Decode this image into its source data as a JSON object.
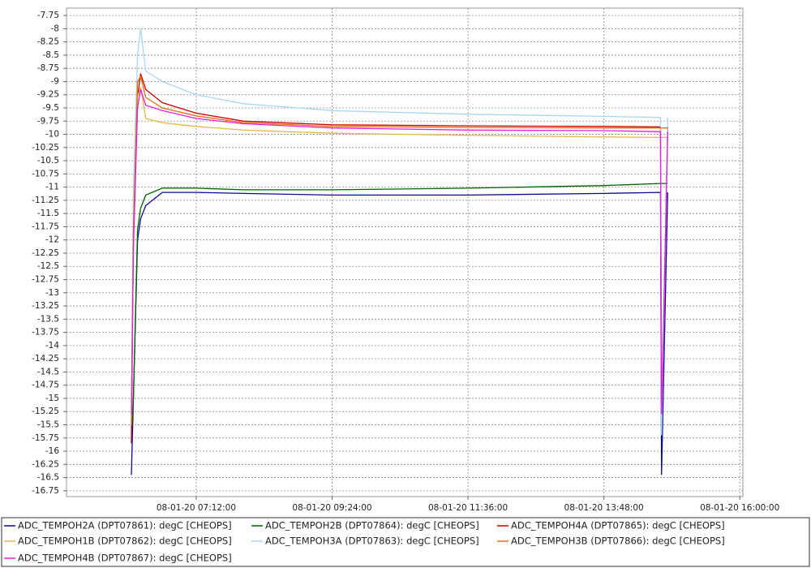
{
  "chart_data": {
    "type": "line",
    "x": [
      "08-01-20 06:09:00",
      "08-01-20 06:11:00",
      "08-01-20 06:15:00",
      "08-01-20 06:18:00",
      "08-01-20 06:23:00",
      "08-01-20 06:39:00",
      "08-01-20 07:12:00",
      "08-01-20 07:58:00",
      "08-01-20 09:24:00",
      "08-01-20 11:36:00",
      "08-01-20 13:48:00",
      "08-01-20 14:43:00",
      "08-01-20 14:44:00",
      "08-01-20 14:50:00"
    ],
    "series": [
      {
        "name": "ADC_TEMPOH2A (DPT07861): degC [CHEOPS]",
        "color": "#0a0a96",
        "values": [
          -16.45,
          -15.0,
          -12.0,
          -11.6,
          -11.35,
          -11.1,
          -11.1,
          -11.12,
          -11.15,
          -11.15,
          -11.12,
          -11.1,
          -16.45,
          -11.1
        ]
      },
      {
        "name": "ADC_TEMPOH2B (DPT07864): degC [CHEOPS]",
        "color": "#006400",
        "values": [
          -15.7,
          -15.0,
          -11.8,
          -11.4,
          -11.15,
          -11.02,
          -11.02,
          -11.05,
          -11.05,
          -11.02,
          -10.97,
          -10.93,
          -10.93,
          -10.93
        ]
      },
      {
        "name": "ADC_TEMPOH4A (DPT07865): degC [CHEOPS]",
        "color": "#cc0000",
        "values": [
          -15.85,
          -12.0,
          -9.3,
          -8.85,
          -9.15,
          -9.4,
          -9.6,
          -9.75,
          -9.82,
          -9.84,
          -9.85,
          -9.86,
          -15.6,
          -9.86
        ]
      },
      {
        "name": "ADC_TEMPOH1B (DPT07862): degC [CHEOPS]",
        "color": "#e6b84a",
        "values": [
          -15.2,
          -12.0,
          -9.3,
          -9.1,
          -9.7,
          -9.78,
          -9.85,
          -9.92,
          -9.98,
          -10.02,
          -10.05,
          -10.06,
          -10.06,
          -10.06
        ]
      },
      {
        "name": "ADC_TEMPOH3A (DPT07863): degC [CHEOPS]",
        "color": "#a8d8f0",
        "values": [
          -15.4,
          -11.0,
          -8.5,
          -8.0,
          -8.8,
          -9.0,
          -9.25,
          -9.42,
          -9.55,
          -9.62,
          -9.66,
          -9.68,
          -15.7,
          -9.68
        ]
      },
      {
        "name": "ADC_TEMPOH3B (DPT07866): degC [CHEOPS]",
        "color": "#e07010",
        "values": [
          -15.5,
          -11.8,
          -9.0,
          -8.9,
          -9.3,
          -9.5,
          -9.65,
          -9.78,
          -9.85,
          -9.87,
          -9.88,
          -9.88,
          -9.88,
          -9.88
        ]
      },
      {
        "name": "ADC_TEMPOH4B (DPT07867): degC [CHEOPS]",
        "color": "#e020e0",
        "values": [
          -15.3,
          -12.2,
          -9.5,
          -9.15,
          -9.45,
          -9.55,
          -9.7,
          -9.8,
          -9.88,
          -9.92,
          -9.93,
          -9.95,
          -15.3,
          -9.95
        ]
      }
    ],
    "xlim": [
      "08-01-20 05:06:00",
      "08-01-20 16:03:00"
    ],
    "xticks": [
      "08-01-20 07:12:00",
      "08-01-20 09:24:00",
      "08-01-20 11:36:00",
      "08-01-20 13:48:00",
      "08-01-20 16:00:00"
    ],
    "ylim": [
      -16.86,
      -7.61
    ],
    "yticks": [
      -7.75,
      -8,
      -8.25,
      -8.5,
      -8.75,
      -9,
      -9.25,
      -9.5,
      -9.75,
      -10,
      -10.25,
      -10.5,
      -10.75,
      -11,
      -11.25,
      -11.5,
      -11.75,
      -12,
      -12.25,
      -12.5,
      -12.75,
      -13,
      -13.25,
      -13.5,
      -13.75,
      -14,
      -14.25,
      -14.5,
      -14.75,
      -15,
      -15.25,
      -15.5,
      -15.75,
      -16,
      -16.25,
      -16.5,
      -16.75
    ],
    "grid": true,
    "legend": "bottom"
  }
}
